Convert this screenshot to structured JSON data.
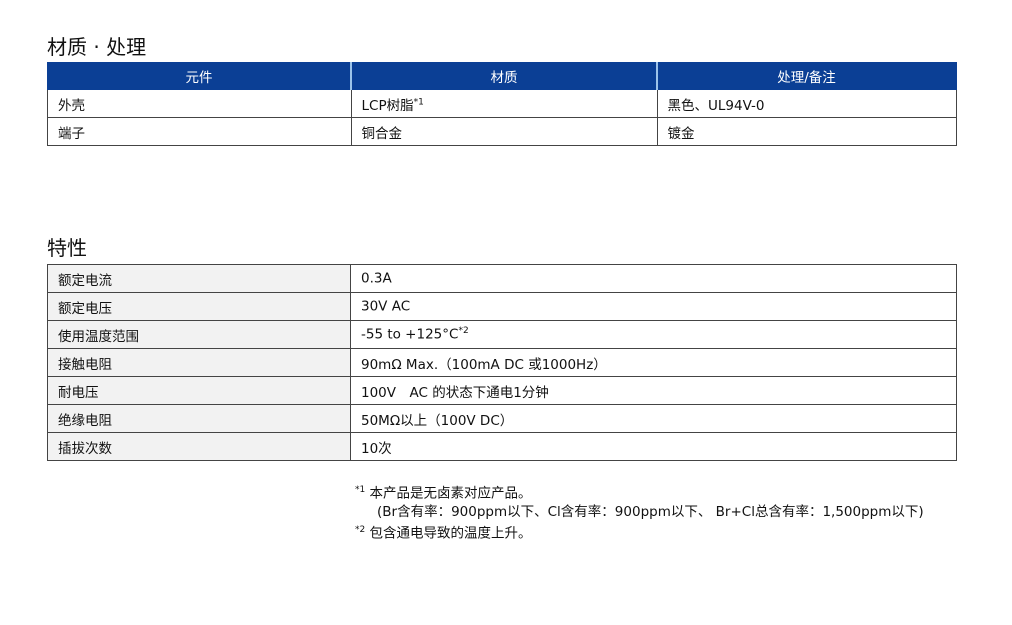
{
  "materials": {
    "title": "材质 · 处理",
    "headers": [
      "元件",
      "材质",
      "处理/备注"
    ],
    "rows": [
      {
        "part": "外壳",
        "material": "LCP树脂",
        "material_note": "*1",
        "finish": "黑色、UL94V-0"
      },
      {
        "part": "端子",
        "material": "铜合金",
        "material_note": "",
        "finish": "镀金"
      }
    ]
  },
  "characteristics": {
    "title": "特性",
    "rows": [
      {
        "label": "额定电流",
        "value": "0.3A",
        "note": ""
      },
      {
        "label": "额定电压",
        "value": "30V AC",
        "note": ""
      },
      {
        "label": "使用温度范围",
        "value": "-55 to +125°C",
        "note": "*2"
      },
      {
        "label": "接触电阻",
        "value": "90mΩ Max.（100mA DC 或1000Hz）",
        "note": ""
      },
      {
        "label": "耐电压",
        "value": "100V　AC 的状态下通电1分钟",
        "note": ""
      },
      {
        "label": "绝缘电阻",
        "value": "50MΩ以上（100V DC）",
        "note": ""
      },
      {
        "label": "插拔次数",
        "value": "10次",
        "note": ""
      }
    ]
  },
  "footnotes": {
    "n1_mark": "*1",
    "n1_text": " 本产品是无卤素对应产品。",
    "n1_detail": "(Br含有率：900ppm以下、Cl含有率：900ppm以下、 Br+Cl总含有率：1,500ppm以下)",
    "n2_mark": "*2",
    "n2_text": " 包含通电导致的温度上升。"
  }
}
